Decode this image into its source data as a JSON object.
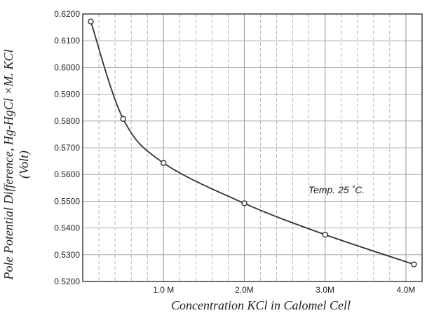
{
  "chart_data": {
    "type": "line",
    "title": "",
    "xlabel": "Concentration  KCl in Calomel Cell",
    "ylabel_line1": "Pole Potential Difference, Hg-HgCl ×M. KCl",
    "ylabel_line2": "(Volt)",
    "annotation": "Temp. 25 ˚C.",
    "xlim": [
      0,
      4.2
    ],
    "ylim": [
      0.52,
      0.62
    ],
    "x_ticks": [
      {
        "value": 1,
        "label": "1.0 M"
      },
      {
        "value": 2,
        "label": "2.0M"
      },
      {
        "value": 3,
        "label": "3.0M"
      },
      {
        "value": 4,
        "label": "4.0M"
      }
    ],
    "y_ticks": [
      {
        "value": 0.52,
        "label": "0.5200"
      },
      {
        "value": 0.53,
        "label": "0.5300"
      },
      {
        "value": 0.54,
        "label": "0.5400"
      },
      {
        "value": 0.55,
        "label": "0.5500"
      },
      {
        "value": 0.56,
        "label": "0.5600"
      },
      {
        "value": 0.57,
        "label": "0.5700"
      },
      {
        "value": 0.58,
        "label": "0.5800"
      },
      {
        "value": 0.59,
        "label": "0.5900"
      },
      {
        "value": 0.6,
        "label": "0.6000"
      },
      {
        "value": 0.61,
        "label": "0.6100"
      },
      {
        "value": 0.62,
        "label": "0.6200"
      }
    ],
    "grid": true,
    "grid_minor_x": 0.2,
    "series": [
      {
        "points": [
          {
            "x": 0.1,
            "y": 0.6172
          },
          {
            "x": 0.5,
            "y": 0.5808
          },
          {
            "x": 1.0,
            "y": 0.5643
          },
          {
            "x": 2.0,
            "y": 0.5492
          },
          {
            "x": 3.0,
            "y": 0.5375
          },
          {
            "x": 4.1,
            "y": 0.5264
          }
        ]
      }
    ],
    "colors": {
      "line": "#333333",
      "grid": "#999999",
      "axis": "#222222"
    }
  }
}
